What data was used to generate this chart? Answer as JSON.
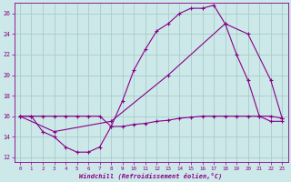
{
  "xlabel": "Windchill (Refroidissement éolien,°C)",
  "background_color": "#cce8e8",
  "grid_color": "#aacccc",
  "line_color": "#880088",
  "xlim": [
    -0.5,
    23.5
  ],
  "ylim": [
    11.5,
    27.0
  ],
  "yticks": [
    12,
    14,
    16,
    18,
    20,
    22,
    24,
    26
  ],
  "xticks": [
    0,
    1,
    2,
    3,
    4,
    5,
    6,
    7,
    8,
    9,
    10,
    11,
    12,
    13,
    14,
    15,
    16,
    17,
    18,
    19,
    20,
    21,
    22,
    23
  ],
  "curve1_x": [
    0,
    1,
    2,
    3,
    4,
    5,
    6,
    7,
    8,
    9,
    10,
    11,
    12,
    13,
    14,
    15,
    16,
    17,
    18,
    19,
    20,
    21,
    22,
    23
  ],
  "curve1_y": [
    16.0,
    16.0,
    14.5,
    14.0,
    13.0,
    12.5,
    12.5,
    13.0,
    15.0,
    17.5,
    20.5,
    22.5,
    24.3,
    25.0,
    26.0,
    26.5,
    26.5,
    26.8,
    25.0,
    22.0,
    19.5,
    16.0,
    15.5,
    15.5
  ],
  "curve2_x": [
    0,
    1,
    2,
    3,
    4,
    5,
    6,
    7,
    8,
    9,
    10,
    11,
    12,
    13,
    14,
    15,
    16,
    17,
    18,
    19,
    20,
    21,
    22,
    23
  ],
  "curve2_y": [
    16.0,
    16.0,
    16.0,
    16.0,
    16.0,
    16.0,
    16.0,
    16.0,
    15.0,
    15.0,
    15.2,
    15.3,
    15.5,
    15.6,
    15.8,
    15.9,
    16.0,
    16.0,
    16.0,
    16.0,
    16.0,
    16.0,
    16.0,
    15.8
  ],
  "curve3_x": [
    0,
    3,
    8,
    13,
    18,
    20,
    22,
    23
  ],
  "curve3_y": [
    16.0,
    14.5,
    15.5,
    20.0,
    25.0,
    24.0,
    19.5,
    15.8
  ]
}
